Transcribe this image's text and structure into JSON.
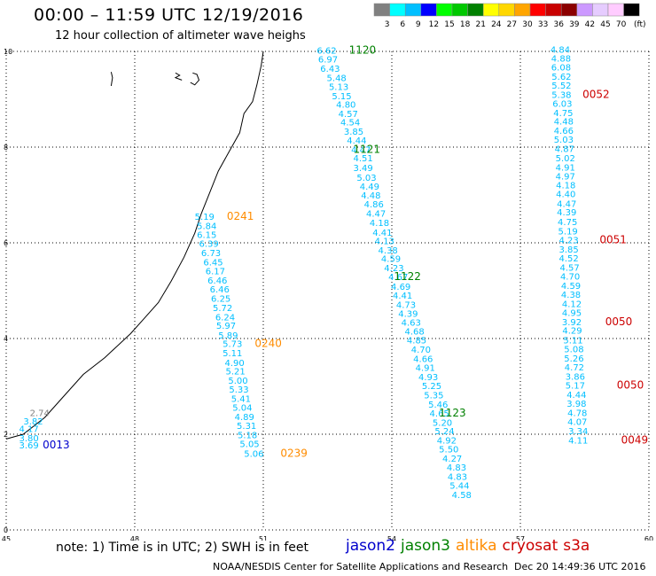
{
  "header": {
    "title": "00:00 – 11:59 UTC 12/19/2016",
    "subtitle": "12 hour collection of altimeter wave heighs"
  },
  "legend": {
    "unit": "(ft)",
    "bins": [
      {
        "label": "3",
        "color": "#808080"
      },
      {
        "label": "6",
        "color": "#00ffff"
      },
      {
        "label": "9",
        "color": "#00bfff"
      },
      {
        "label": "12",
        "color": "#0000ff"
      },
      {
        "label": "15",
        "color": "#00ff00"
      },
      {
        "label": "18",
        "color": "#00c800"
      },
      {
        "label": "21",
        "color": "#008000"
      },
      {
        "label": "24",
        "color": "#ffff00"
      },
      {
        "label": "27",
        "color": "#ffd700"
      },
      {
        "label": "30",
        "color": "#ffa500"
      },
      {
        "label": "33",
        "color": "#ff0000"
      },
      {
        "label": "36",
        "color": "#c80000"
      },
      {
        "label": "39",
        "color": "#8b0000"
      },
      {
        "label": "42",
        "color": "#cc99ff"
      },
      {
        "label": "45",
        "color": "#e6ccff"
      },
      {
        "label": "70",
        "color": "#ffccff"
      },
      {
        "label": "",
        "color": "#000000"
      }
    ]
  },
  "map": {
    "lon_ticks": [
      "45",
      "48",
      "51",
      "54",
      "57",
      "60"
    ],
    "lat_ticks": [
      "0",
      "2",
      "4",
      "6",
      "8",
      "10"
    ],
    "lon_range": [
      45,
      60
    ],
    "lat_range": [
      0,
      10
    ]
  },
  "colors": {
    "jason2": "#0000cc",
    "jason3": "#008000",
    "altika": "#ff8c00",
    "cryosat": "#cc0000",
    "s3a": "#cc0000",
    "swh": "#00bfff",
    "swh_low": "#808080"
  },
  "tracks": [
    {
      "id": "jason2",
      "points": [
        {
          "lon": 45.3,
          "lat": 1.7,
          "v": "3.69"
        },
        {
          "lon": 45.3,
          "lat": 1.85,
          "v": "3.80"
        },
        {
          "lon": 45.3,
          "lat": 2.05,
          "v": "4.17"
        },
        {
          "lon": 45.4,
          "lat": 2.2,
          "v": "3.82"
        },
        {
          "lon": 45.55,
          "lat": 2.38,
          "v": "2.74",
          "low": true
        }
      ],
      "time_labels": [
        {
          "lon": 45.85,
          "lat": 1.7,
          "t": "0013"
        }
      ]
    },
    {
      "id": "jason3",
      "points": [
        {
          "lon": 52.25,
          "lat": 9.95,
          "v": "6.62"
        },
        {
          "lon": 52.28,
          "lat": 9.77,
          "v": "6.97"
        },
        {
          "lon": 52.33,
          "lat": 9.57,
          "v": "6.43"
        },
        {
          "lon": 52.48,
          "lat": 9.38,
          "v": "5.48"
        },
        {
          "lon": 52.53,
          "lat": 9.19,
          "v": "5.13"
        },
        {
          "lon": 52.6,
          "lat": 9.0,
          "v": "5.15"
        },
        {
          "lon": 52.7,
          "lat": 8.82,
          "v": "4.80"
        },
        {
          "lon": 52.75,
          "lat": 8.63,
          "v": "4.57"
        },
        {
          "lon": 52.8,
          "lat": 8.45,
          "v": "4.54"
        },
        {
          "lon": 52.88,
          "lat": 8.26,
          "v": "3.85"
        },
        {
          "lon": 52.95,
          "lat": 8.07,
          "v": "4.44"
        },
        {
          "lon": 53.05,
          "lat": 7.88,
          "v": "4.47"
        },
        {
          "lon": 53.1,
          "lat": 7.7,
          "v": "4.51"
        },
        {
          "lon": 53.1,
          "lat": 7.5,
          "v": "3.49"
        },
        {
          "lon": 53.18,
          "lat": 7.3,
          "v": "5.03"
        },
        {
          "lon": 53.25,
          "lat": 7.11,
          "v": "4.49"
        },
        {
          "lon": 53.28,
          "lat": 6.93,
          "v": "4.48"
        },
        {
          "lon": 53.35,
          "lat": 6.74,
          "v": "4.86"
        },
        {
          "lon": 53.4,
          "lat": 6.55,
          "v": "4.47"
        },
        {
          "lon": 53.48,
          "lat": 6.35,
          "v": "4.18"
        },
        {
          "lon": 53.55,
          "lat": 6.15,
          "v": "4.41"
        },
        {
          "lon": 53.6,
          "lat": 5.97,
          "v": "4.13"
        },
        {
          "lon": 53.68,
          "lat": 5.78,
          "v": "4.38"
        },
        {
          "lon": 53.75,
          "lat": 5.6,
          "v": "4.59"
        },
        {
          "lon": 53.82,
          "lat": 5.41,
          "v": "4.23"
        },
        {
          "lon": 53.92,
          "lat": 5.22,
          "v": "4.67"
        },
        {
          "lon": 53.98,
          "lat": 5.02,
          "v": "4.69"
        },
        {
          "lon": 54.02,
          "lat": 4.83,
          "v": "4.41"
        },
        {
          "lon": 54.1,
          "lat": 4.64,
          "v": "4.73"
        },
        {
          "lon": 54.15,
          "lat": 4.45,
          "v": "4.39"
        },
        {
          "lon": 54.22,
          "lat": 4.27,
          "v": "4.63"
        },
        {
          "lon": 54.3,
          "lat": 4.08,
          "v": "4.68"
        },
        {
          "lon": 54.35,
          "lat": 3.9,
          "v": "4.85"
        },
        {
          "lon": 54.45,
          "lat": 3.7,
          "v": "4.70"
        },
        {
          "lon": 54.5,
          "lat": 3.51,
          "v": "4.66"
        },
        {
          "lon": 54.55,
          "lat": 3.32,
          "v": "4.91"
        },
        {
          "lon": 54.62,
          "lat": 3.13,
          "v": "4.93"
        },
        {
          "lon": 54.7,
          "lat": 2.94,
          "v": "5.25"
        },
        {
          "lon": 54.75,
          "lat": 2.75,
          "v": "5.35"
        },
        {
          "lon": 54.85,
          "lat": 2.56,
          "v": "5.46"
        },
        {
          "lon": 54.88,
          "lat": 2.37,
          "v": "4.65"
        },
        {
          "lon": 54.95,
          "lat": 2.18,
          "v": "5.20"
        },
        {
          "lon": 55.0,
          "lat": 2.0,
          "v": "5.24"
        },
        {
          "lon": 55.05,
          "lat": 1.81,
          "v": "4.92"
        },
        {
          "lon": 55.1,
          "lat": 1.62,
          "v": "5.50"
        },
        {
          "lon": 55.18,
          "lat": 1.43,
          "v": "4.27"
        },
        {
          "lon": 55.28,
          "lat": 1.24,
          "v": "4.83"
        },
        {
          "lon": 55.3,
          "lat": 1.05,
          "v": "4.83"
        },
        {
          "lon": 55.35,
          "lat": 0.86,
          "v": "5.44"
        },
        {
          "lon": 55.4,
          "lat": 0.67,
          "v": "4.58"
        }
      ],
      "time_labels": [
        {
          "lon": 53.0,
          "lat": 9.95,
          "t": "1120"
        },
        {
          "lon": 53.1,
          "lat": 7.88,
          "t": "1121"
        },
        {
          "lon": 54.05,
          "lat": 5.22,
          "t": "1122"
        },
        {
          "lon": 55.1,
          "lat": 2.37,
          "t": "1123"
        }
      ]
    },
    {
      "id": "altika",
      "points": [
        {
          "lon": 49.4,
          "lat": 6.48,
          "v": "5.19"
        },
        {
          "lon": 49.45,
          "lat": 6.29,
          "v": "5.84"
        },
        {
          "lon": 49.45,
          "lat": 6.1,
          "v": "6.15"
        },
        {
          "lon": 49.5,
          "lat": 5.92,
          "v": "6.39"
        },
        {
          "lon": 49.55,
          "lat": 5.72,
          "v": "6.73"
        },
        {
          "lon": 49.6,
          "lat": 5.53,
          "v": "6.45"
        },
        {
          "lon": 49.65,
          "lat": 5.34,
          "v": "6.17"
        },
        {
          "lon": 49.7,
          "lat": 5.15,
          "v": "6.46"
        },
        {
          "lon": 49.75,
          "lat": 4.96,
          "v": "6.46"
        },
        {
          "lon": 49.78,
          "lat": 4.77,
          "v": "6.25"
        },
        {
          "lon": 49.82,
          "lat": 4.57,
          "v": "5.72"
        },
        {
          "lon": 49.88,
          "lat": 4.38,
          "v": "6.24"
        },
        {
          "lon": 49.9,
          "lat": 4.2,
          "v": "5.97"
        },
        {
          "lon": 49.95,
          "lat": 4.0,
          "v": "5.89"
        },
        {
          "lon": 50.05,
          "lat": 3.82,
          "v": "5.73"
        },
        {
          "lon": 50.05,
          "lat": 3.63,
          "v": "5.11"
        },
        {
          "lon": 50.1,
          "lat": 3.43,
          "v": "4.90"
        },
        {
          "lon": 50.12,
          "lat": 3.25,
          "v": "5.21"
        },
        {
          "lon": 50.18,
          "lat": 3.06,
          "v": "5.00"
        },
        {
          "lon": 50.2,
          "lat": 2.87,
          "v": "5.33"
        },
        {
          "lon": 50.25,
          "lat": 2.68,
          "v": "5.41"
        },
        {
          "lon": 50.28,
          "lat": 2.49,
          "v": "5.04"
        },
        {
          "lon": 50.33,
          "lat": 2.3,
          "v": "4.89"
        },
        {
          "lon": 50.38,
          "lat": 2.11,
          "v": "5.31"
        },
        {
          "lon": 50.4,
          "lat": 1.92,
          "v": "5.18"
        },
        {
          "lon": 50.45,
          "lat": 1.73,
          "v": "5.05"
        },
        {
          "lon": 50.55,
          "lat": 1.53,
          "v": "5.06"
        }
      ],
      "time_labels": [
        {
          "lon": 50.15,
          "lat": 6.48,
          "t": "0241"
        },
        {
          "lon": 50.8,
          "lat": 3.82,
          "t": "0240"
        },
        {
          "lon": 51.4,
          "lat": 1.53,
          "t": "0239"
        }
      ]
    },
    {
      "id": "cryosat",
      "points": [
        {
          "lon": 57.7,
          "lat": 9.97,
          "v": "4.84"
        },
        {
          "lon": 57.72,
          "lat": 9.79,
          "v": "4.88"
        },
        {
          "lon": 57.72,
          "lat": 9.6,
          "v": "6.08"
        },
        {
          "lon": 57.73,
          "lat": 9.41,
          "v": "5.62"
        },
        {
          "lon": 57.73,
          "lat": 9.22,
          "v": "5.52"
        },
        {
          "lon": 57.73,
          "lat": 9.03,
          "v": "5.38"
        },
        {
          "lon": 57.75,
          "lat": 8.84,
          "v": "6.03"
        },
        {
          "lon": 57.77,
          "lat": 8.65,
          "v": "4.75"
        },
        {
          "lon": 57.78,
          "lat": 8.47,
          "v": "4.48"
        },
        {
          "lon": 57.78,
          "lat": 8.28,
          "v": "4.66"
        },
        {
          "lon": 57.78,
          "lat": 8.09,
          "v": "5.03"
        },
        {
          "lon": 57.8,
          "lat": 7.9,
          "v": "4.87"
        },
        {
          "lon": 57.82,
          "lat": 7.7,
          "v": "5.02"
        },
        {
          "lon": 57.82,
          "lat": 7.51,
          "v": "4.91"
        },
        {
          "lon": 57.82,
          "lat": 7.32,
          "v": "4.97"
        },
        {
          "lon": 57.83,
          "lat": 7.14,
          "v": "4.18"
        },
        {
          "lon": 57.83,
          "lat": 6.95,
          "v": "4.40"
        },
        {
          "lon": 57.85,
          "lat": 6.75,
          "v": "4.47"
        },
        {
          "lon": 57.85,
          "lat": 6.57,
          "v": "4.39"
        },
        {
          "lon": 57.87,
          "lat": 6.37,
          "v": "4.75"
        },
        {
          "lon": 57.88,
          "lat": 6.18,
          "v": "5.19"
        },
        {
          "lon": 57.9,
          "lat": 5.99,
          "v": "4.23"
        },
        {
          "lon": 57.9,
          "lat": 5.8,
          "v": "3.85"
        },
        {
          "lon": 57.9,
          "lat": 5.61,
          "v": "4.52"
        },
        {
          "lon": 57.92,
          "lat": 5.42,
          "v": "4.57"
        },
        {
          "lon": 57.93,
          "lat": 5.23,
          "v": "4.70"
        },
        {
          "lon": 57.95,
          "lat": 5.04,
          "v": "4.59"
        },
        {
          "lon": 57.95,
          "lat": 4.85,
          "v": "4.38"
        },
        {
          "lon": 57.97,
          "lat": 4.66,
          "v": "4.12"
        },
        {
          "lon": 57.97,
          "lat": 4.47,
          "v": "4.95"
        },
        {
          "lon": 57.97,
          "lat": 4.28,
          "v": "3.92"
        },
        {
          "lon": 57.98,
          "lat": 4.1,
          "v": "4.29"
        },
        {
          "lon": 58.0,
          "lat": 3.9,
          "v": "5.11"
        },
        {
          "lon": 58.02,
          "lat": 3.71,
          "v": "5.08"
        },
        {
          "lon": 58.02,
          "lat": 3.52,
          "v": "5.26"
        },
        {
          "lon": 58.03,
          "lat": 3.33,
          "v": "4.72"
        },
        {
          "lon": 58.05,
          "lat": 3.14,
          "v": "3.86"
        },
        {
          "lon": 58.05,
          "lat": 2.95,
          "v": "5.17"
        },
        {
          "lon": 58.08,
          "lat": 2.76,
          "v": "4.44"
        },
        {
          "lon": 58.08,
          "lat": 2.57,
          "v": "3.98"
        },
        {
          "lon": 58.1,
          "lat": 2.38,
          "v": "4.78"
        },
        {
          "lon": 58.1,
          "lat": 2.19,
          "v": "4.07"
        },
        {
          "lon": 58.12,
          "lat": 2.0,
          "v": "3.34"
        },
        {
          "lon": 58.12,
          "lat": 1.81,
          "v": "4.11"
        }
      ],
      "time_labels": [
        {
          "lon": 58.45,
          "lat": 9.03,
          "t": "0052"
        },
        {
          "lon": 58.85,
          "lat": 5.99,
          "t": "0051"
        },
        {
          "lon": 58.98,
          "lat": 4.28,
          "t": "0050"
        },
        {
          "lon": 59.25,
          "lat": 2.95,
          "t": "0050"
        },
        {
          "lon": 59.35,
          "lat": 1.81,
          "t": "0049"
        }
      ]
    }
  ],
  "footer": {
    "note": "note: 1) Time is in UTC; 2) SWH is in feet",
    "satellites": [
      {
        "name": "jason2",
        "color": "#0000cc"
      },
      {
        "name": "jason3",
        "color": "#008000"
      },
      {
        "name": "altika",
        "color": "#ff8c00"
      },
      {
        "name": "cryosat",
        "color": "#cc0000"
      },
      {
        "name": "s3a",
        "color": "#cc0000"
      }
    ],
    "credit": "NOAA/NESDIS Center for Satellite Applications and Research",
    "date": "Dec 20 14:49:36 UTC 2016"
  }
}
